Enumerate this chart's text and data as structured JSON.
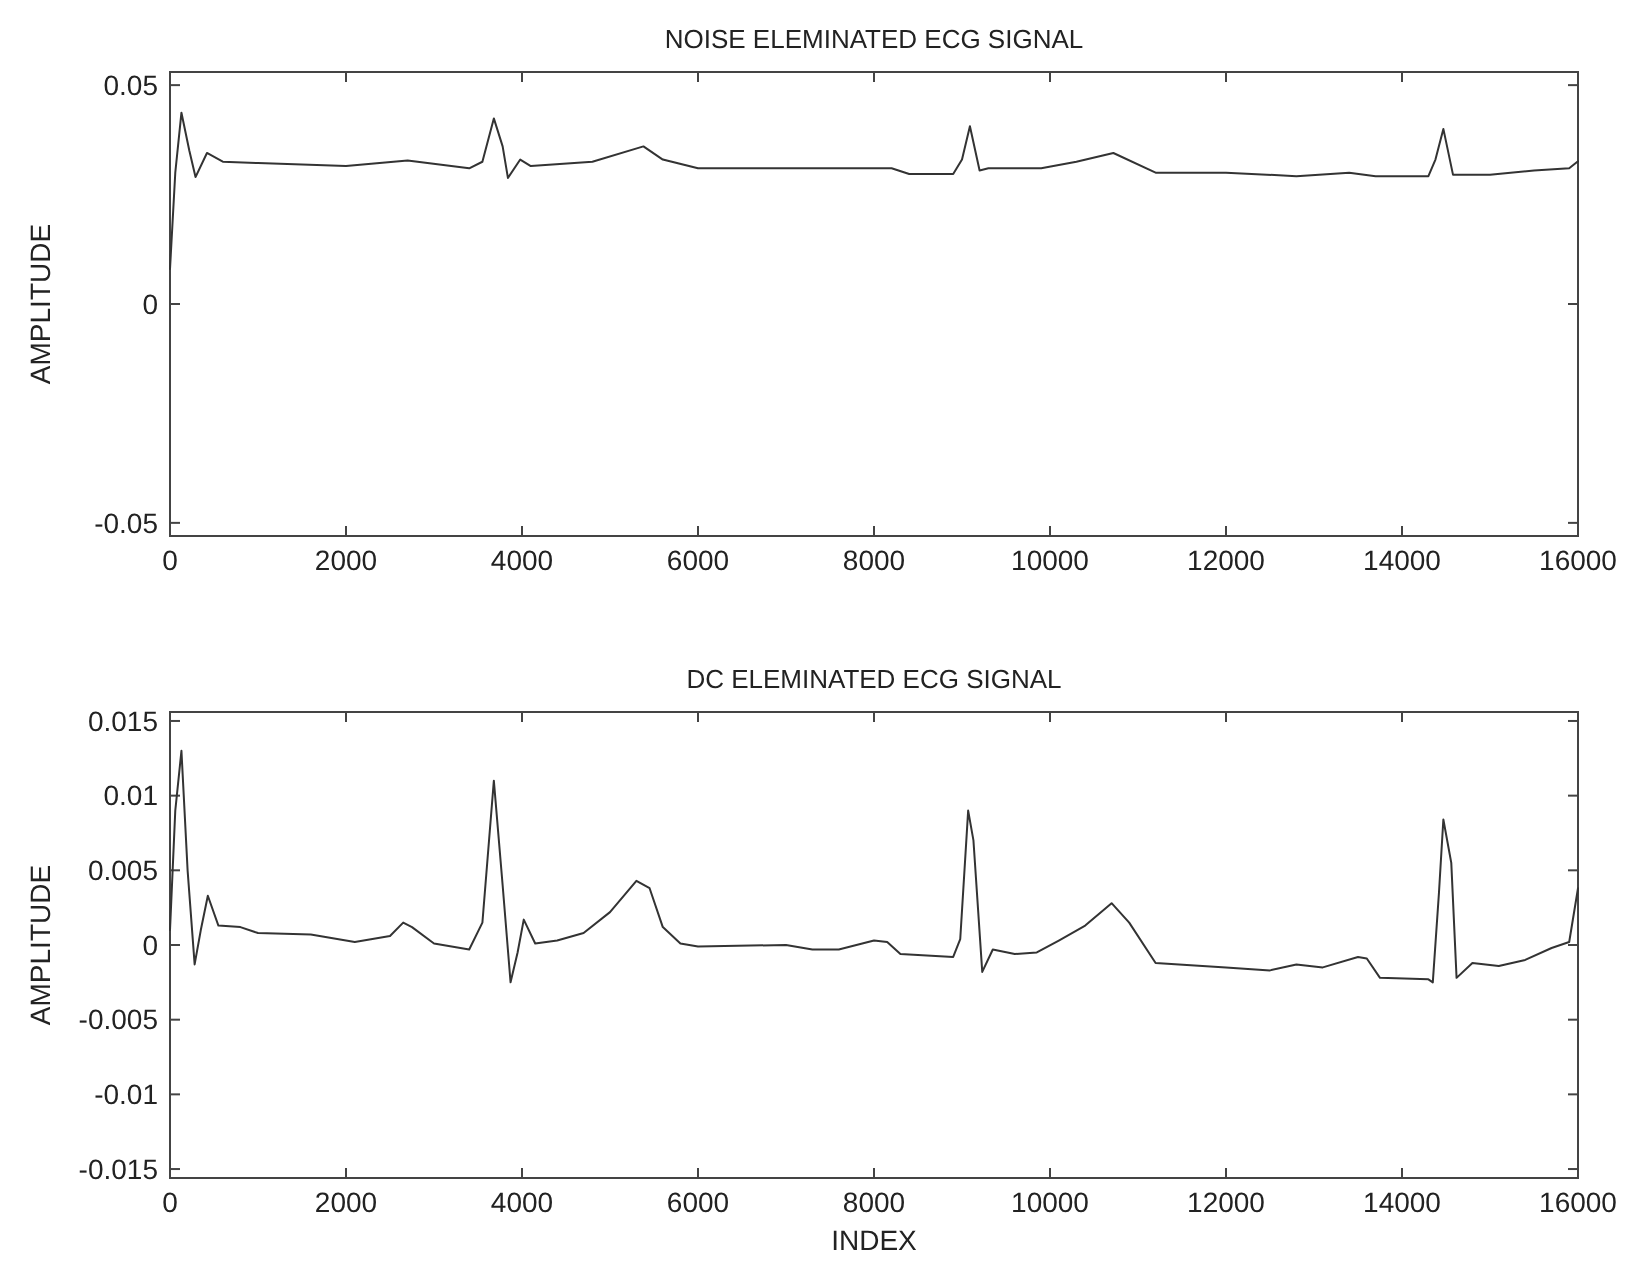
{
  "chart_data": [
    {
      "type": "line",
      "title": "NOISE ELEMINATED ECG SIGNAL",
      "ylabel": "AMPLITUDE",
      "x": [
        0,
        60,
        130,
        220,
        290,
        420,
        600,
        1000,
        2000,
        2700,
        3400,
        3550,
        3680,
        3780,
        3840,
        3980,
        4100,
        4800,
        5380,
        5600,
        6000,
        7500,
        8200,
        8400,
        8900,
        9000,
        9090,
        9200,
        9300,
        9900,
        10300,
        10720,
        11200,
        12000,
        12800,
        13400,
        13700,
        14300,
        14380,
        14470,
        14580,
        15000,
        15500,
        15900,
        16000
      ],
      "series": [
        {
          "color": "#333333",
          "values": [
            0.008,
            0.03,
            0.0437,
            0.035,
            0.029,
            0.0345,
            0.0325,
            0.0322,
            0.0315,
            0.0328,
            0.031,
            0.0325,
            0.0424,
            0.036,
            0.0288,
            0.033,
            0.0315,
            0.0325,
            0.036,
            0.033,
            0.031,
            0.031,
            0.031,
            0.0297,
            0.0297,
            0.033,
            0.0406,
            0.0305,
            0.031,
            0.031,
            0.0325,
            0.0345,
            0.03,
            0.03,
            0.0292,
            0.03,
            0.0292,
            0.0292,
            0.033,
            0.04,
            0.0295,
            0.0295,
            0.0305,
            0.031,
            0.0326
          ]
        }
      ],
      "xlim": [
        0,
        16000
      ],
      "xticks": [
        0,
        2000,
        4000,
        6000,
        8000,
        10000,
        12000,
        14000,
        16000
      ],
      "ylim": [
        -0.053,
        0.053
      ],
      "yticks": [
        -0.05,
        0,
        0.05
      ]
    },
    {
      "type": "line",
      "title": "DC ELEMINATED ECG SIGNAL",
      "xlabel": "INDEX",
      "ylabel": "AMPLITUDE",
      "x": [
        0,
        60,
        130,
        200,
        280,
        350,
        430,
        550,
        800,
        1000,
        1600,
        2100,
        2500,
        2650,
        2750,
        3000,
        3400,
        3550,
        3680,
        3780,
        3870,
        3950,
        4020,
        4150,
        4400,
        4700,
        5000,
        5300,
        5450,
        5600,
        5800,
        6000,
        7000,
        7300,
        7600,
        8000,
        8150,
        8300,
        8900,
        8980,
        9070,
        9130,
        9230,
        9350,
        9600,
        9850,
        10100,
        10400,
        10700,
        10900,
        11200,
        12000,
        12500,
        12800,
        13100,
        13500,
        13600,
        13750,
        14300,
        14350,
        14420,
        14470,
        14560,
        14620,
        14800,
        15100,
        15400,
        15700,
        15900,
        16000
      ],
      "series": [
        {
          "color": "#333333",
          "values": [
            0.001,
            0.009,
            0.013,
            0.005,
            -0.0013,
            0.001,
            0.0033,
            0.0013,
            0.0012,
            0.0008,
            0.0007,
            0.0002,
            0.0006,
            0.0015,
            0.0012,
            0.0001,
            -0.0003,
            0.0015,
            0.011,
            0.004,
            -0.0025,
            -0.0005,
            0.0017,
            0.0001,
            0.0003,
            0.0008,
            0.0022,
            0.0043,
            0.0038,
            0.0012,
            0.0001,
            -0.0001,
            0,
            -0.0003,
            -0.0003,
            0.0003,
            0.0002,
            -0.0006,
            -0.0008,
            0.0004,
            0.009,
            0.007,
            -0.0018,
            -0.0003,
            -0.0006,
            -0.0005,
            0.0003,
            0.0013,
            0.0028,
            0.0015,
            -0.0012,
            -0.0015,
            -0.0017,
            -0.0013,
            -0.0015,
            -0.0008,
            -0.0009,
            -0.0022,
            -0.0023,
            -0.0025,
            0.0035,
            0.0084,
            0.0055,
            -0.0022,
            -0.0012,
            -0.0014,
            -0.001,
            -0.0002,
            0.0002,
            0.0038
          ]
        }
      ],
      "xlim": [
        0,
        16000
      ],
      "xticks": [
        0,
        2000,
        4000,
        6000,
        8000,
        10000,
        12000,
        14000,
        16000
      ],
      "ylim": [
        -0.0156,
        0.0156
      ],
      "yticks": [
        -0.015,
        -0.01,
        -0.005,
        0,
        0.005,
        0.01,
        0.015
      ]
    }
  ]
}
